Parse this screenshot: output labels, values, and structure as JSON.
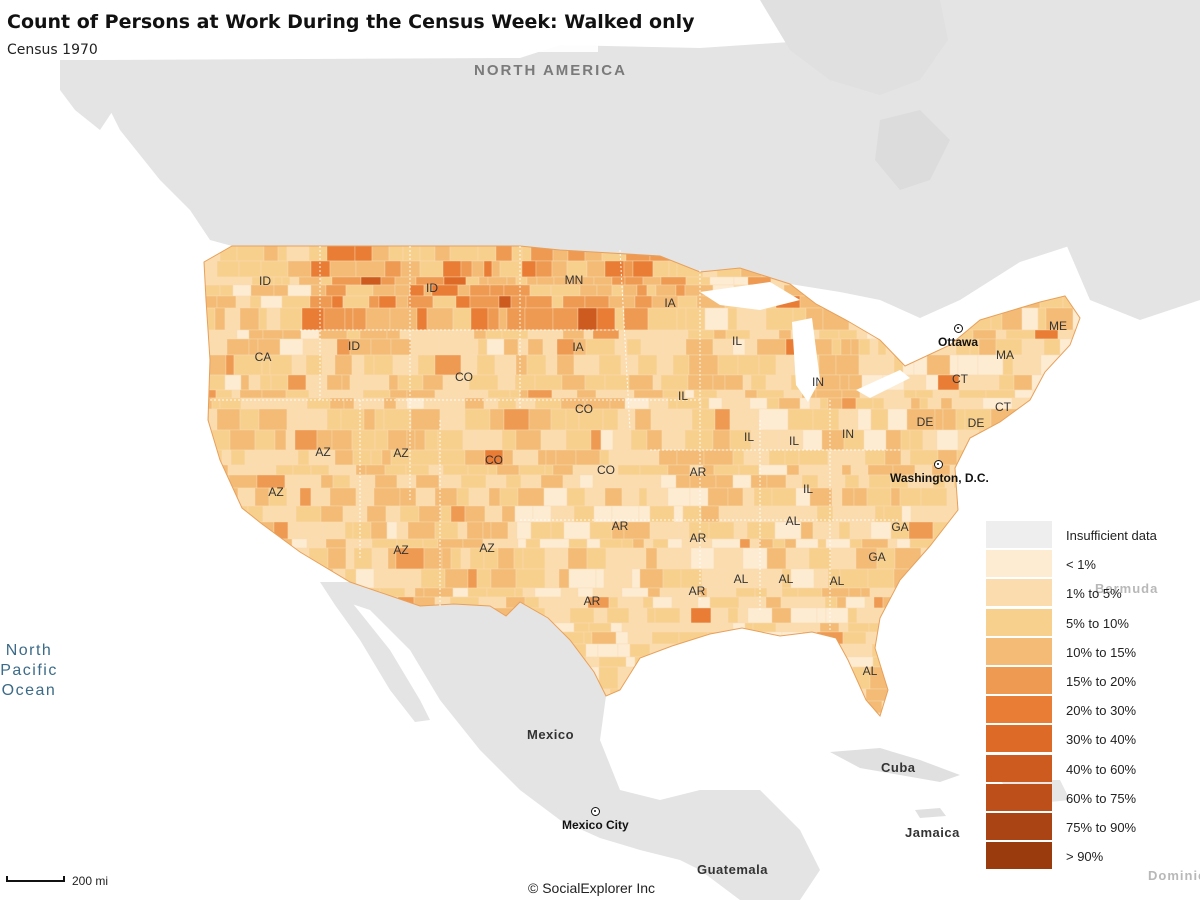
{
  "map": {
    "title": "Count of Persons at Work During the Census Week: Walked only",
    "subtitle": "Census 1970",
    "attribution": "© SocialExplorer Inc",
    "scale": {
      "label": "200 mi"
    }
  },
  "geo_labels": {
    "region": "NORTH AMERICA",
    "ocean": [
      "North",
      "Pacific",
      "Ocean"
    ],
    "countries": [
      "Mexico",
      "Cuba",
      "Jamaica",
      "Guatemala"
    ],
    "faint": [
      "Bermuda",
      "Dominic"
    ]
  },
  "cities": {
    "ottawa": "Ottawa",
    "washington": "Washington, D.C.",
    "mexico_city": "Mexico City"
  },
  "state_labels": [
    "ID",
    "ID",
    "CA",
    "ID",
    "MN",
    "IA",
    "IA",
    "CO",
    "CO",
    "AZ",
    "AZ",
    "AZ",
    "CO",
    "CO",
    "AZ",
    "AZ",
    "AR",
    "AR",
    "AR",
    "AR",
    "AR",
    "IL",
    "IL",
    "IL",
    "IL",
    "IN",
    "IN",
    "IL",
    "ME",
    "MA",
    "CT",
    "CT",
    "DE",
    "DE",
    "AL",
    "AL",
    "AL",
    "AL",
    "AL",
    "GA",
    "GA"
  ],
  "legend": {
    "items": [
      {
        "label": "Insufficient data",
        "color": "#eeeeee"
      },
      {
        "label": "< 1%",
        "color": "#fdebd2"
      },
      {
        "label": "1% to 5%",
        "color": "#fbdcae"
      },
      {
        "label": "5% to 10%",
        "color": "#f8d08e"
      },
      {
        "label": "10% to 15%",
        "color": "#f4bb76"
      },
      {
        "label": "15% to 20%",
        "color": "#ef9a52"
      },
      {
        "label": "20% to 30%",
        "color": "#ea7d35"
      },
      {
        "label": "30% to 40%",
        "color": "#de6a28"
      },
      {
        "label": "40% to 60%",
        "color": "#cd5b20"
      },
      {
        "label": "60% to 75%",
        "color": "#bc4f1a"
      },
      {
        "label": "75% to 90%",
        "color": "#aa4414"
      },
      {
        "label": "> 90%",
        "color": "#9a3b0e"
      }
    ]
  },
  "colors": {
    "land": "#e4e4e4",
    "land_light": "#ececec",
    "water": "#ffffff",
    "ocean_text": "#3b6b88"
  }
}
